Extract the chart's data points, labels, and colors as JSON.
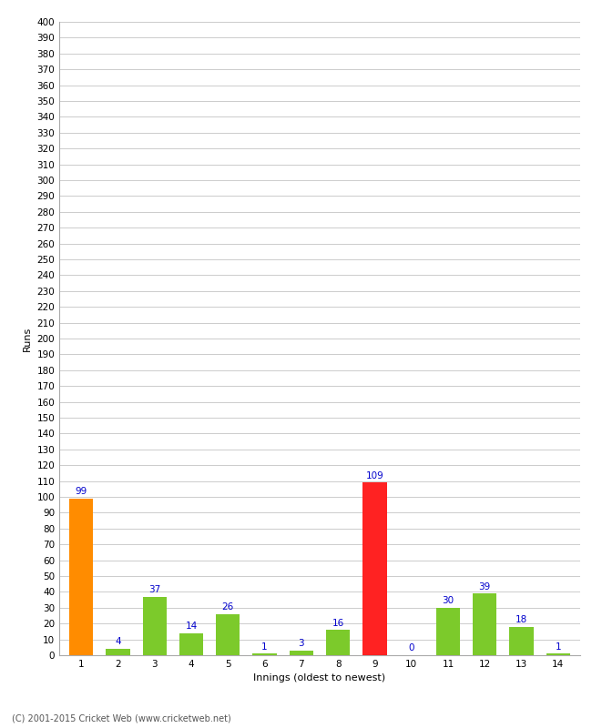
{
  "xlabel": "Innings (oldest to newest)",
  "ylabel": "Runs",
  "categories": [
    1,
    2,
    3,
    4,
    5,
    6,
    7,
    8,
    9,
    10,
    11,
    12,
    13,
    14
  ],
  "values": [
    99,
    4,
    37,
    14,
    26,
    1,
    3,
    16,
    109,
    0,
    30,
    39,
    18,
    1
  ],
  "bar_colors": [
    "#ff8c00",
    "#7cca2b",
    "#7cca2b",
    "#7cca2b",
    "#7cca2b",
    "#7cca2b",
    "#7cca2b",
    "#7cca2b",
    "#ff2222",
    "#7cca2b",
    "#7cca2b",
    "#7cca2b",
    "#7cca2b",
    "#7cca2b"
  ],
  "ylim": [
    0,
    400
  ],
  "label_color": "#0000cc",
  "copyright": "(C) 2001-2015 Cricket Web (www.cricketweb.net)",
  "background_color": "#ffffff",
  "grid_color": "#cccccc",
  "label_fontsize": 7.5,
  "axis_label_fontsize": 8,
  "tick_fontsize": 7.5
}
